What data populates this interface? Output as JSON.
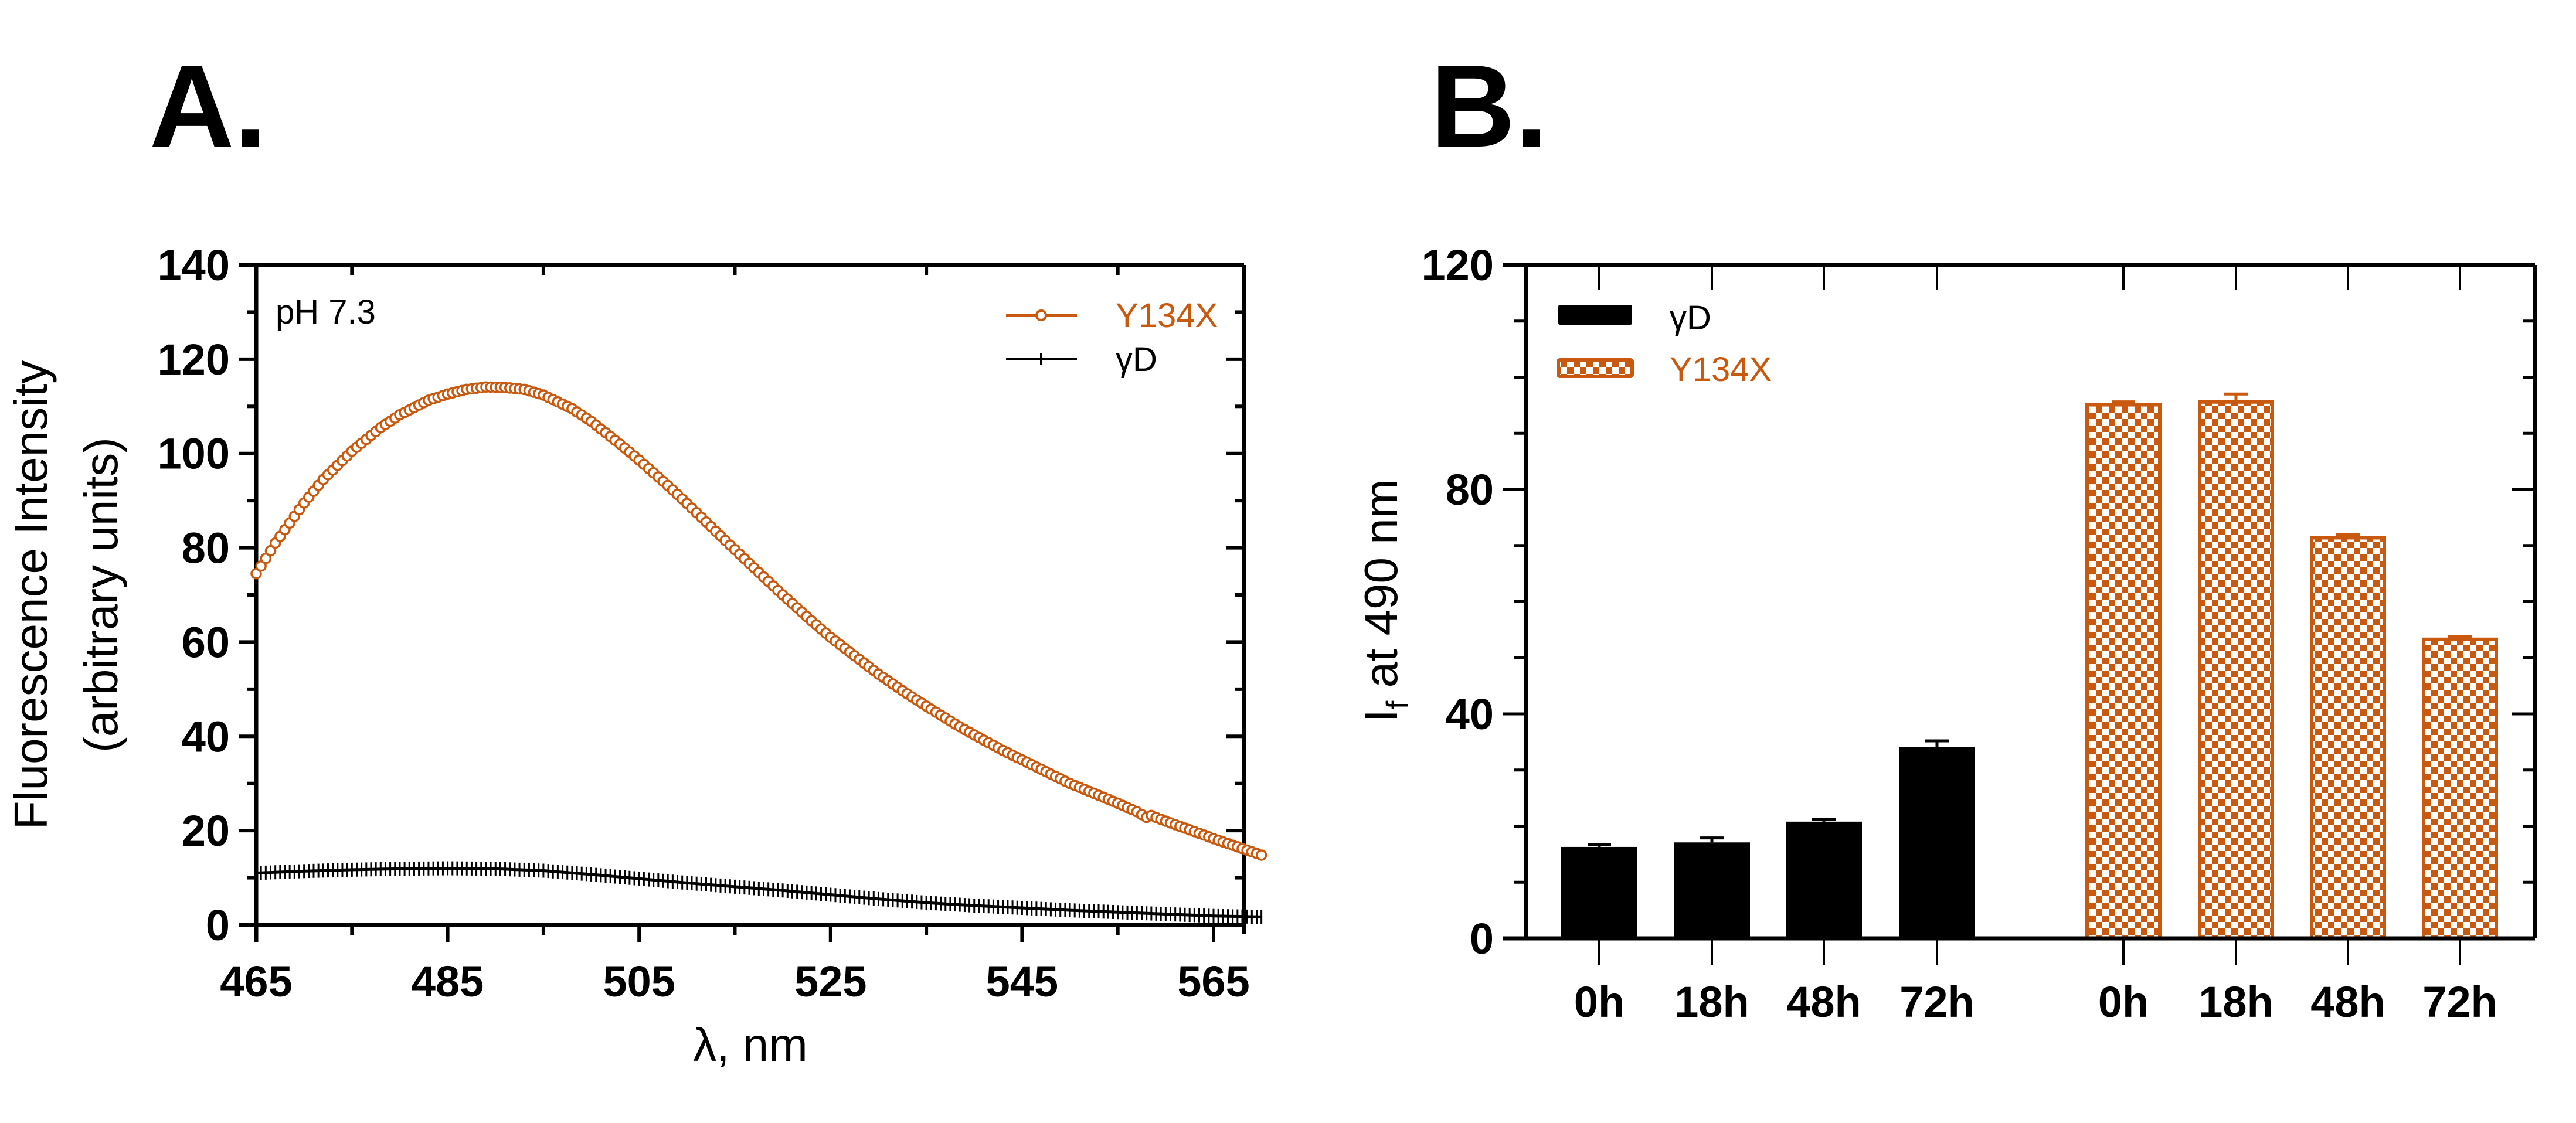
{
  "panels": {
    "a_label": "A.",
    "b_label": "B."
  },
  "colors": {
    "y134x": "#c9590f",
    "gammaD": "#000000",
    "axis": "#000000"
  },
  "chart_data": [
    {
      "id": "A",
      "type": "scatter",
      "title": "",
      "annotation": "pH 7.3",
      "xlabel": "λ, nm",
      "ylabel_line1": "Fluorescence Intensity",
      "ylabel_line2": "(arbitrary units)",
      "xlim": [
        465,
        575
      ],
      "ylim": [
        0,
        140
      ],
      "xticks": [
        465,
        485,
        505,
        525,
        545,
        565
      ],
      "xtick_labels": [
        "465",
        "485",
        "505",
        "525",
        "545",
        "565"
      ],
      "yticks": [
        0,
        20,
        40,
        60,
        80,
        100,
        120,
        140
      ],
      "ytick_labels": [
        "0",
        "20",
        "40",
        "60",
        "80",
        "100",
        "120",
        "140"
      ],
      "sample_step_nm": 0.5,
      "legend_position": "top-right",
      "grid": false,
      "series": [
        {
          "name": "Y134X",
          "marker": "open-circle",
          "x": [
            465,
            467,
            470,
            472,
            475,
            478,
            480,
            483,
            485,
            487,
            489,
            491,
            493,
            495,
            498,
            500,
            503,
            505,
            508,
            510,
            513,
            515,
            518,
            520,
            523,
            525,
            528,
            530,
            533,
            535,
            538,
            540,
            543,
            545,
            548,
            550,
            553,
            555,
            557,
            558,
            558.5,
            560,
            563,
            565,
            568,
            570
          ],
          "y": [
            74.5,
            81,
            89.5,
            94.5,
            100.5,
            105.5,
            108.2,
            111.3,
            112.6,
            113.6,
            114.1,
            114.0,
            113.6,
            112.4,
            109.5,
            106.8,
            102.0,
            98.6,
            93.2,
            89.4,
            83.5,
            79.6,
            73.8,
            70.0,
            64.5,
            61.0,
            56.3,
            53.2,
            49.0,
            46.4,
            42.6,
            40.3,
            37.0,
            35.0,
            32.0,
            30.0,
            27.5,
            25.8,
            24.0,
            22.8,
            23.2,
            22.0,
            19.8,
            18.3,
            16.2,
            14.8
          ]
        },
        {
          "name": "γD",
          "marker": "plus",
          "x": [
            465,
            470,
            475,
            480,
            485,
            490,
            495,
            500,
            505,
            510,
            515,
            520,
            525,
            530,
            535,
            540,
            545,
            550,
            555,
            560,
            565,
            570
          ],
          "y": [
            11.0,
            11.4,
            11.7,
            11.9,
            12.0,
            11.9,
            11.5,
            10.7,
            9.8,
            8.9,
            8.1,
            7.3,
            6.4,
            5.5,
            4.7,
            4.1,
            3.6,
            3.1,
            2.7,
            2.3,
            1.9,
            1.7
          ]
        }
      ]
    },
    {
      "id": "B",
      "type": "bar",
      "xlabel": "",
      "ylabel_main": "I",
      "ylabel_sub": "f",
      "ylabel_rest": " at 490 nm",
      "ylim": [
        0,
        120
      ],
      "yticks": [
        0,
        40,
        80,
        120
      ],
      "ytick_labels": [
        "0",
        "40",
        "80",
        "120"
      ],
      "minor_ytick_step": 10,
      "legend_position": "top-left",
      "grid": false,
      "categories": [
        "0h",
        "18h",
        "48h",
        "72h"
      ],
      "series": [
        {
          "name": "γD",
          "fill": "solid-black",
          "values": [
            16.3,
            17.1,
            20.8,
            34.1
          ],
          "errors": [
            0.4,
            0.8,
            0.4,
            1.1
          ]
        },
        {
          "name": "Y134X",
          "fill": "orange-checkerboard",
          "values": [
            95.4,
            95.9,
            71.7,
            53.6
          ],
          "errors": [
            0.2,
            1.1,
            0.2,
            0.2
          ]
        }
      ]
    }
  ]
}
